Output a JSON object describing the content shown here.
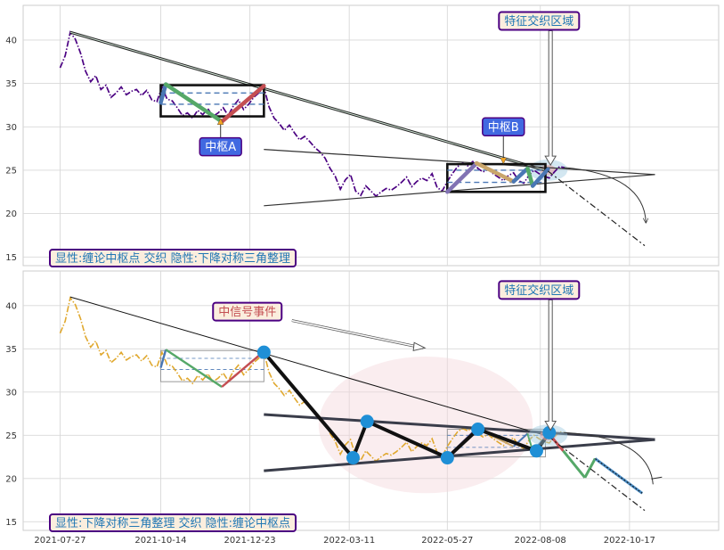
{
  "chart_data": [
    {
      "type": "line",
      "panel": "top",
      "ylim": [
        14,
        44
      ],
      "y_ticks": [
        15,
        20,
        25,
        30,
        35,
        40
      ],
      "grid": true,
      "price_color": "#4b0082",
      "price_x": [
        "2021-07-27",
        "2021-07-31",
        "2021-08-04",
        "2021-08-08",
        "2021-08-12",
        "2021-08-16",
        "2021-08-20",
        "2021-08-24",
        "2021-08-28",
        "2021-09-01",
        "2021-09-05",
        "2021-09-09",
        "2021-09-13",
        "2021-09-17",
        "2021-09-21",
        "2021-09-25",
        "2021-09-29",
        "2021-10-03",
        "2021-10-07",
        "2021-10-11",
        "2021-10-15",
        "2021-10-19",
        "2021-10-23",
        "2021-10-27",
        "2021-10-31",
        "2021-11-04",
        "2021-11-08",
        "2021-11-12",
        "2021-11-16",
        "2021-11-20",
        "2021-11-24",
        "2021-11-28",
        "2021-12-02",
        "2021-12-06",
        "2021-12-10",
        "2021-12-14",
        "2021-12-18",
        "2021-12-22",
        "2021-12-26",
        "2021-12-30",
        "2022-01-03",
        "2022-01-07",
        "2022-01-11",
        "2022-01-15",
        "2022-01-19",
        "2022-01-23",
        "2022-01-27",
        "2022-01-31",
        "2022-02-04",
        "2022-02-08",
        "2022-02-12",
        "2022-02-16",
        "2022-02-20",
        "2022-02-24",
        "2022-02-28",
        "2022-03-04",
        "2022-03-08",
        "2022-03-12",
        "2022-03-16",
        "2022-03-20",
        "2022-03-24",
        "2022-03-28",
        "2022-04-01",
        "2022-04-05",
        "2022-04-09",
        "2022-04-13",
        "2022-04-17",
        "2022-04-21",
        "2022-04-25",
        "2022-04-29",
        "2022-05-03",
        "2022-05-07",
        "2022-05-11",
        "2022-05-15",
        "2022-05-19",
        "2022-05-23",
        "2022-05-27",
        "2022-05-31",
        "2022-06-04",
        "2022-06-08",
        "2022-06-12",
        "2022-06-16",
        "2022-06-20",
        "2022-06-24",
        "2022-06-28",
        "2022-07-02",
        "2022-07-06",
        "2022-07-10",
        "2022-07-14",
        "2022-07-18",
        "2022-07-22",
        "2022-07-26",
        "2022-07-30",
        "2022-08-03",
        "2022-08-07",
        "2022-08-11",
        "2022-08-15",
        "2022-08-19",
        "2022-08-23",
        "2022-08-27"
      ],
      "price_y": [
        36.8,
        38.2,
        40.9,
        40.1,
        38.5,
        36.4,
        35.2,
        35.9,
        34.3,
        34.8,
        33.4,
        33.9,
        34.6,
        33.7,
        34.1,
        34.3,
        33.6,
        34.2,
        33.1,
        32.9,
        34.6,
        33.2,
        33.0,
        32.2,
        31.3,
        31.6,
        31.0,
        31.9,
        31.4,
        32.1,
        31.2,
        31.6,
        32.2,
        31.3,
        32.4,
        33.1,
        32.0,
        32.6,
        33.4,
        33.9,
        34.6,
        32.3,
        31.0,
        30.4,
        29.6,
        30.2,
        29.3,
        28.5,
        28.9,
        28.3,
        27.6,
        27.1,
        26.4,
        25.2,
        24.3,
        22.8,
        23.9,
        24.5,
        22.6,
        22.1,
        23.2,
        22.6,
        22.0,
        22.5,
        22.9,
        22.7,
        23.1,
        23.6,
        24.2,
        23.1,
        23.7,
        24.1,
        23.8,
        24.6,
        23.0,
        22.6,
        23.7,
        24.6,
        25.4,
        25.8,
        25.5,
        26.0,
        25.2,
        24.8,
        25.1,
        24.6,
        24.2,
        23.8,
        24.4,
        24.7,
        23.8,
        23.5,
        24.4,
        25.0,
        24.6,
        24.3,
        24.1,
        24.8,
        25.4,
        25.3
      ],
      "bi_strokes": [
        {
          "color": "#4a77b4",
          "points": [
            [
              "2021-10-14",
              32.8
            ],
            [
              "2021-10-18",
              34.9
            ]
          ]
        },
        {
          "color": "#55a868",
          "points": [
            [
              "2021-10-18",
              34.9
            ],
            [
              "2021-12-01",
              30.6
            ]
          ]
        },
        {
          "color": "#c44e52",
          "points": [
            [
              "2021-12-01",
              30.6
            ],
            [
              "2022-01-03",
              34.7
            ]
          ]
        },
        {
          "color": "#8172b3",
          "points": [
            [
              "2022-05-27",
              22.5
            ],
            [
              "2022-06-19",
              25.8
            ]
          ]
        },
        {
          "color": "#c9a56a",
          "points": [
            [
              "2022-06-19",
              25.8
            ],
            [
              "2022-07-18",
              23.7
            ]
          ]
        },
        {
          "color": "#4a77b4",
          "points": [
            [
              "2022-07-18",
              23.7
            ],
            [
              "2022-07-29",
              25.2
            ]
          ]
        },
        {
          "color": "#55a868",
          "points": [
            [
              "2022-07-29",
              25.2
            ],
            [
              "2022-08-02",
              23.2
            ]
          ]
        },
        {
          "color": "#4a77b4",
          "points": [
            [
              "2022-08-02",
              23.2
            ],
            [
              "2022-08-14",
              25.1
            ]
          ]
        }
      ],
      "downtrend_line": [
        [
          "2021-08-04",
          40.9
        ],
        [
          "2022-08-14",
          24.9
        ]
      ],
      "triangle_upper": [
        [
          "2022-01-03",
          27.4
        ],
        [
          "2022-11-06",
          24.5
        ]
      ],
      "triangle_lower": [
        [
          "2022-01-03",
          20.9
        ],
        [
          "2022-11-06",
          24.5
        ]
      ],
      "projection_line": [
        [
          "2022-08-14",
          24.9
        ],
        [
          "2022-10-29",
          16.3
        ]
      ],
      "zhongshu": [
        {
          "label": "中枢A",
          "x0": "2021-10-14",
          "x1": "2022-01-03",
          "y0": 31.2,
          "y1": 34.8,
          "dash_hi": 33.9,
          "dash_lo": 32.6,
          "arrow_to": [
            "2021-11-30",
            30.9
          ],
          "label_at": [
            "2021-11-30",
            27.7
          ]
        },
        {
          "label": "中枢B",
          "x0": "2022-05-27",
          "x1": "2022-08-12",
          "y0": 22.5,
          "y1": 25.7,
          "dash_hi": 25.0,
          "dash_lo": 23.6,
          "arrow_to": [
            "2022-07-10",
            25.8
          ],
          "label_at": [
            "2022-07-10",
            30.0
          ]
        }
      ],
      "focus_ellipse": [
        "2022-08-14",
        25.0
      ],
      "annotation": {
        "text": "特征交织区域",
        "at": [
          "2022-08-07",
          42.2
        ],
        "arrow_to": [
          "2022-08-16",
          25.6
        ]
      },
      "legend_text": "显性:缠论中枢点 交织 隐性:下降对称三角整理"
    },
    {
      "type": "line",
      "panel": "bottom",
      "ylim": [
        14,
        44
      ],
      "y_ticks": [
        15,
        20,
        25,
        30,
        35,
        40
      ],
      "x_ticks": [
        "2021-07-27",
        "2021-10-14",
        "2021-12-23",
        "2022-03-11",
        "2022-05-27",
        "2022-08-08",
        "2022-10-17"
      ],
      "grid": true,
      "price_color": "#e0a82e",
      "zigzag": [
        [
          "2022-01-03",
          34.6
        ],
        [
          "2022-03-14",
          22.4
        ],
        [
          "2022-03-25",
          26.6
        ],
        [
          "2022-05-27",
          22.4
        ],
        [
          "2022-06-20",
          25.7
        ],
        [
          "2022-08-05",
          23.2
        ],
        [
          "2022-08-15",
          25.3
        ]
      ],
      "breakdown_strokes": [
        {
          "color": "#c44e52",
          "points": [
            [
              "2022-08-14",
              25.3
            ],
            [
              "2022-08-26",
              23.2
            ]
          ]
        },
        {
          "color": "#55a868",
          "points": [
            [
              "2022-08-26",
              23.2
            ],
            [
              "2022-09-12",
              20.1
            ]
          ]
        },
        {
          "color": "#55a868",
          "points": [
            [
              "2022-09-12",
              20.1
            ],
            [
              "2022-09-20",
              22.3
            ]
          ]
        },
        {
          "color": "#4a8cc4",
          "points": [
            [
              "2022-09-20",
              22.3
            ],
            [
              "2022-10-27",
              18.3
            ]
          ]
        }
      ],
      "triangle_upper": [
        [
          "2022-01-03",
          27.4
        ],
        [
          "2022-11-06",
          24.5
        ]
      ],
      "triangle_lower": [
        [
          "2022-01-03",
          20.9
        ],
        [
          "2022-11-06",
          24.5
        ]
      ],
      "downtrend_line": [
        [
          "2021-08-04",
          41.0
        ],
        [
          "2022-08-14",
          24.9
        ]
      ],
      "projection_line": [
        [
          "2022-08-14",
          24.9
        ],
        [
          "2022-10-29",
          16.3
        ]
      ],
      "event_ellipse": {
        "center": [
          "2022-05-10",
          26.2
        ],
        "x_radius_days": 84,
        "y_radius": 7.9
      },
      "event_annotation": {
        "text": "中信号事件",
        "at": [
          "2021-12-21",
          39.3
        ],
        "arrow_to": [
          "2022-05-08",
          35.1
        ]
      },
      "annotation": {
        "text": "特征交织区域",
        "at": [
          "2022-08-07",
          41.8
        ],
        "arrow_to": [
          "2022-08-16",
          25.6
        ]
      },
      "legend_text": "显性:下降对称三角整理 交织 隐性:缠论中枢点"
    }
  ]
}
